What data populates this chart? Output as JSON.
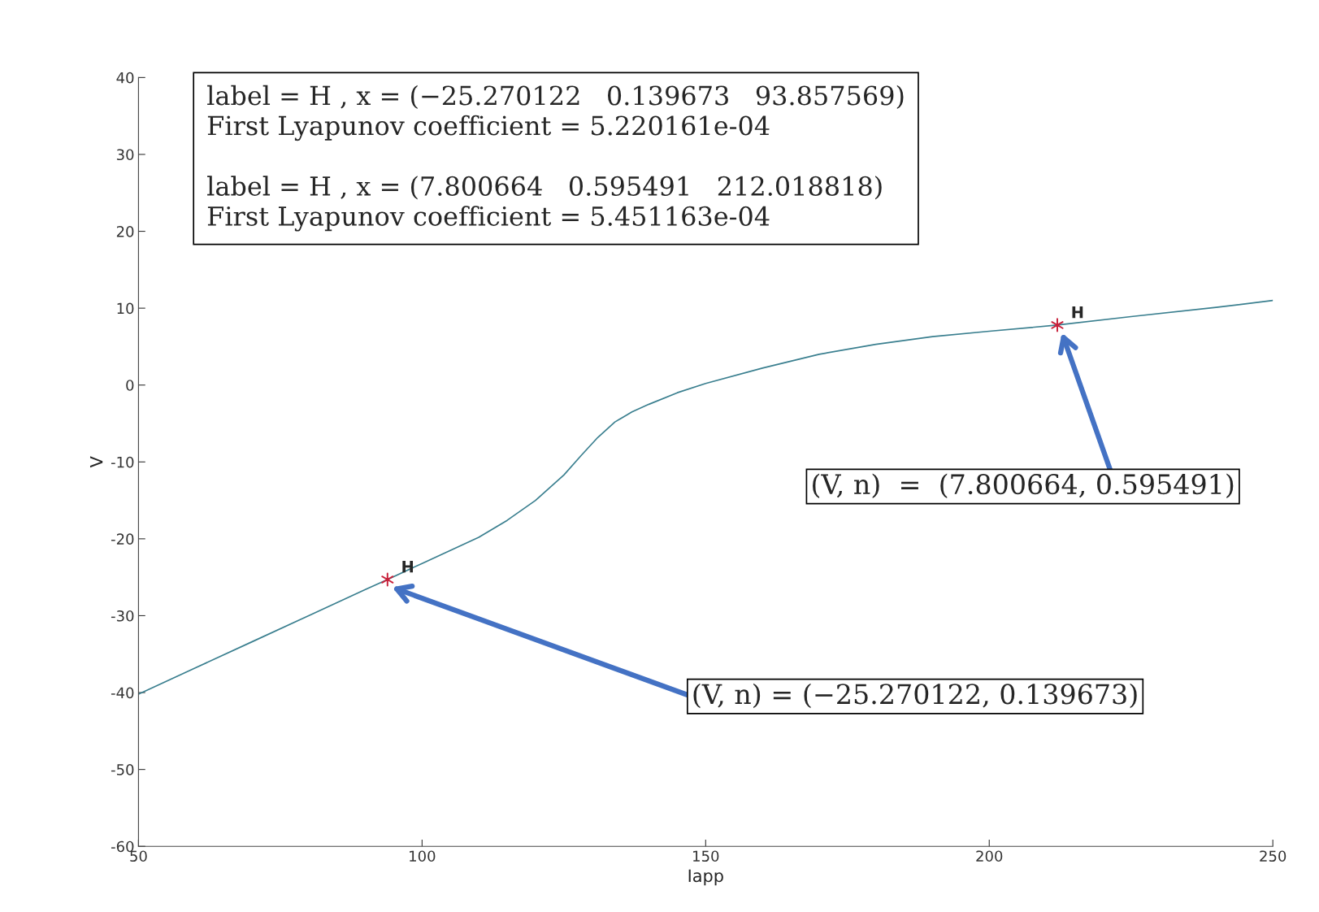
{
  "chart_data": {
    "type": "line",
    "xlabel": "Iapp",
    "ylabel": "V",
    "xlim": [
      50,
      250
    ],
    "ylim": [
      -60,
      40
    ],
    "xticks": [
      50,
      100,
      150,
      200,
      250
    ],
    "yticks": [
      -60,
      -50,
      -40,
      -30,
      -20,
      -10,
      0,
      10,
      20,
      30,
      40
    ],
    "grid": false,
    "legend": false,
    "series": [
      {
        "color": "#3a7f8f",
        "marker": "none",
        "line_style": "solid",
        "x": [
          50,
          60,
          70,
          80,
          90,
          93.9,
          100,
          110,
          115,
          120,
          125,
          128,
          131,
          134,
          137,
          140,
          145,
          150,
          160,
          170,
          180,
          190,
          200,
          212.0,
          225,
          240,
          250
        ],
        "values": [
          -40.2,
          -36.8,
          -33.4,
          -30.0,
          -26.6,
          -25.3,
          -23.2,
          -19.8,
          -17.6,
          -15.0,
          -11.7,
          -9.2,
          -6.8,
          -4.8,
          -3.5,
          -2.5,
          -1.0,
          0.2,
          2.2,
          4.0,
          5.3,
          6.3,
          7.0,
          7.8,
          8.9,
          10.1,
          11.0
        ]
      },
      {
        "type": "scatter",
        "color": "#c8203a",
        "marker": "cross",
        "x": [
          93.9,
          212.0
        ],
        "values": [
          -25.3,
          7.8
        ]
      }
    ],
    "annotations": [
      "label = H , x = (−25.270122   0.139673   93.857569)\nFirst Lyapunov coefficient = 5.220161e-04\n\nlabel = H , x = (7.800664   0.595491   212.018818)\nFirst Lyapunov coefficient = 5.451163e-04",
      "H",
      "H",
      "(V, n) = (−25.270122, 0.139673)",
      "(V, n)  =  (7.800664, 0.595491)"
    ]
  }
}
